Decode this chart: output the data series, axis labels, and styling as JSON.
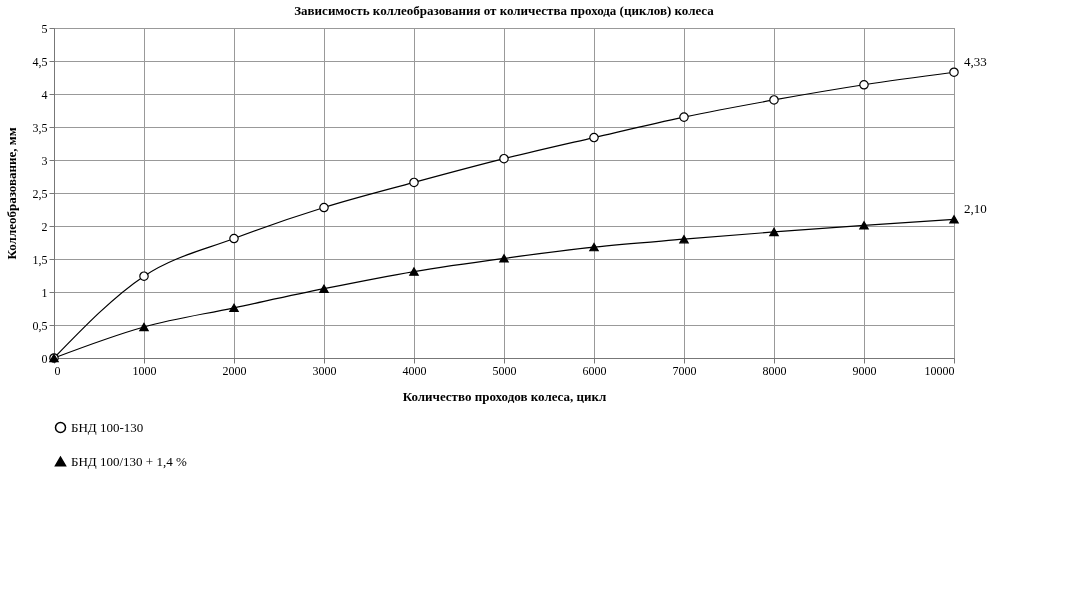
{
  "chart_data": {
    "type": "line",
    "title": "Зависимость коллеобразования от количества прохода (циклов) колеса",
    "xlabel": "Количество проходов колеса, цикл",
    "ylabel": "Коллеобразование, мм",
    "x": [
      0,
      1000,
      2000,
      3000,
      4000,
      5000,
      6000,
      7000,
      8000,
      9000,
      10000
    ],
    "series": [
      {
        "name": "БНД 100-130",
        "color": "#000000",
        "marker": "circle",
        "values": [
          0,
          1.24,
          1.81,
          2.28,
          2.66,
          3.02,
          3.34,
          3.65,
          3.91,
          4.14,
          4.33
        ],
        "value_labels": [
          null,
          null,
          null,
          null,
          null,
          null,
          null,
          null,
          null,
          null,
          "4,33"
        ]
      },
      {
        "name": "БНД 100/130 + 1,4 %",
        "color": "#000000",
        "marker": "triangle",
        "values": [
          0,
          0.47,
          0.76,
          1.05,
          1.31,
          1.51,
          1.68,
          1.8,
          1.91,
          2.01,
          2.1
        ],
        "value_labels": [
          null,
          null,
          null,
          null,
          null,
          null,
          null,
          null,
          null,
          null,
          "2,10"
        ]
      }
    ],
    "xlim": [
      0,
      10000
    ],
    "xticks": [
      0,
      1000,
      2000,
      3000,
      4000,
      5000,
      6000,
      7000,
      8000,
      9000,
      10000
    ],
    "ylim": [
      0,
      5
    ],
    "yticks": [
      0,
      {
        "value": 0.5,
        "label": "0,5"
      },
      1,
      {
        "value": 1.5,
        "label": "1,5"
      },
      2,
      {
        "value": 2.5,
        "label": "2,5"
      },
      3,
      {
        "value": 3.5,
        "label": "3,5"
      },
      4,
      {
        "value": 4.5,
        "label": "4,5"
      },
      5
    ],
    "grid": true,
    "legend": "bottom",
    "line_style": "solid"
  }
}
